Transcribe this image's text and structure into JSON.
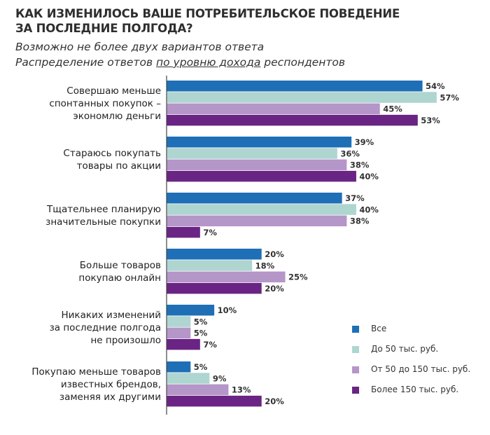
{
  "chart_data": {
    "type": "bar",
    "orientation": "horizontal",
    "title": "КАК ИЗМЕНИЛОСЬ ВАШЕ ПОТРЕБИТЕЛЬСКОЕ ПОВЕДЕНИЕ ЗА ПОСЛЕДНИЕ ПОЛГОДА?",
    "title_lines": [
      "КАК ИЗМЕНИЛОСЬ ВАШЕ ПОТРЕБИТЕЛЬСКОЕ ПОВЕДЕНИЕ",
      "ЗА ПОСЛЕДНИЕ ПОЛГОДА?"
    ],
    "subtitle1": "Возможно не более двух вариантов ответа",
    "subtitle2_pre": "Распределение ответов ",
    "subtitle2_underlined": "по уровню дохода",
    "subtitle2_post": " респондентов",
    "categories": [
      [
        "Совершаю меньше",
        "спонтанных покупок –",
        "экономлю деньги"
      ],
      [
        "Стараюсь покупать",
        "товары по акции"
      ],
      [
        "Тщательнее планирую",
        "значительные покупки"
      ],
      [
        "Больше товаров",
        "покупаю онлайн"
      ],
      [
        "Никаких изменений",
        "за последние полгода",
        "не произошло"
      ],
      [
        "Покупаю меньше товаров",
        "известных брендов,",
        "заменяя их другими"
      ]
    ],
    "series": [
      {
        "name": "Все",
        "color": "#1f6fb6",
        "values": [
          54,
          39,
          37,
          20,
          10,
          5
        ]
      },
      {
        "name": "До 50 тыс. руб.",
        "color": "#afd5d1",
        "values": [
          57,
          36,
          40,
          18,
          5,
          9
        ]
      },
      {
        "name": "От 50 до 150 тыс. руб.",
        "color": "#b596c8",
        "values": [
          45,
          38,
          38,
          25,
          5,
          13
        ]
      },
      {
        "name": "Более 150 тыс. руб.",
        "color": "#6a2484",
        "values": [
          53,
          40,
          7,
          20,
          7,
          20
        ]
      }
    ],
    "value_suffix": "%",
    "xlim": [
      0,
      62
    ],
    "grid": false,
    "legend_position": "bottom-right"
  }
}
